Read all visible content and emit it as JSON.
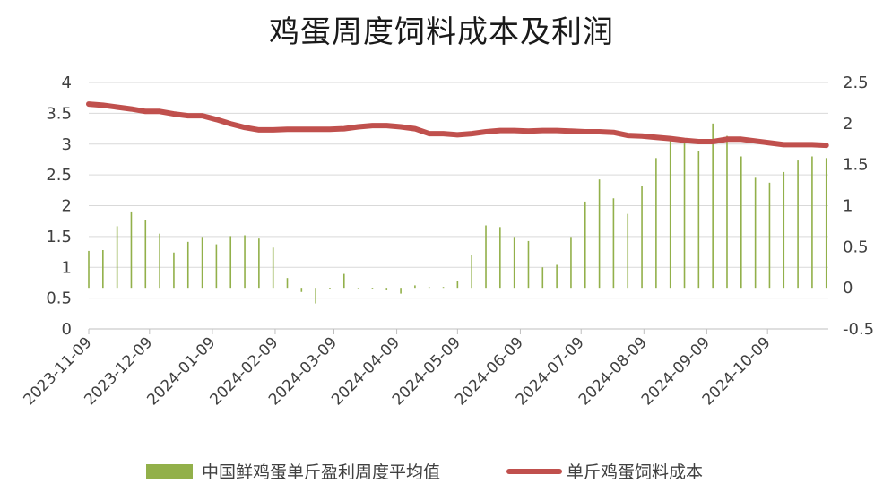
{
  "chart_data": {
    "type": "bar+line",
    "title": "鸡蛋周度饲料成本及利润",
    "x_ticks": [
      "2023-11-09",
      "2023-12-09",
      "2024-01-09",
      "2024-02-09",
      "2024-03-09",
      "2024-04-09",
      "2024-05-09",
      "2024-06-09",
      "2024-07-09",
      "2024-08-09",
      "2024-09-09",
      "2024-10-09"
    ],
    "x_start": "2023-11-09",
    "x_end": "2024-11-08",
    "left_axis": {
      "min": 0,
      "max": 4,
      "ticks": [
        "0",
        "0.5",
        "1",
        "1.5",
        "2",
        "2.5",
        "3",
        "3.5",
        "4"
      ]
    },
    "right_axis": {
      "min": -0.5,
      "max": 2.5,
      "ticks": [
        "-0.5",
        "0",
        "0.5",
        "1",
        "1.5",
        "2",
        "2.5"
      ]
    },
    "series": [
      {
        "name": "中国鲜鸡蛋单斤盈利周度平均值",
        "axis": "right",
        "type": "bar",
        "color": "#92b04a",
        "x": [
          "2023-11-09",
          "2023-11-16",
          "2023-11-23",
          "2023-11-30",
          "2023-12-07",
          "2023-12-14",
          "2023-12-21",
          "2023-12-28",
          "2024-01-04",
          "2024-01-11",
          "2024-01-18",
          "2024-01-25",
          "2024-02-01",
          "2024-02-08",
          "2024-02-15",
          "2024-02-22",
          "2024-02-29",
          "2024-03-07",
          "2024-03-14",
          "2024-03-21",
          "2024-03-28",
          "2024-04-04",
          "2024-04-11",
          "2024-04-18",
          "2024-04-25",
          "2024-05-02",
          "2024-05-09",
          "2024-05-16",
          "2024-05-23",
          "2024-05-30",
          "2024-06-06",
          "2024-06-13",
          "2024-06-20",
          "2024-06-27",
          "2024-07-04",
          "2024-07-11",
          "2024-07-18",
          "2024-07-25",
          "2024-08-01",
          "2024-08-08",
          "2024-08-15",
          "2024-08-22",
          "2024-08-29",
          "2024-09-05",
          "2024-09-12",
          "2024-09-19",
          "2024-09-26",
          "2024-10-03",
          "2024-10-10",
          "2024-10-17",
          "2024-10-24",
          "2024-10-31",
          "2024-11-07"
        ],
        "values": [
          0.45,
          0.46,
          0.75,
          0.93,
          0.82,
          0.66,
          0.43,
          0.56,
          0.62,
          0.53,
          0.63,
          0.64,
          0.6,
          0.49,
          0.12,
          -0.05,
          -0.19,
          -0.01,
          0.17,
          0.0,
          -0.01,
          -0.03,
          -0.07,
          0.03,
          0.01,
          0.01,
          0.08,
          0.4,
          0.76,
          0.74,
          0.62,
          0.57,
          0.25,
          0.28,
          0.62,
          1.05,
          1.32,
          1.09,
          0.9,
          1.24,
          1.58,
          1.8,
          1.78,
          1.66,
          2.0,
          1.85,
          1.6,
          1.34,
          1.28,
          1.41,
          1.55,
          1.6,
          1.58
        ]
      },
      {
        "name": "单斤鸡蛋饲料成本",
        "axis": "left",
        "type": "line",
        "color": "#c0504d",
        "x": [
          "2023-11-09",
          "2023-11-16",
          "2023-11-23",
          "2023-11-30",
          "2023-12-07",
          "2023-12-14",
          "2023-12-21",
          "2023-12-28",
          "2024-01-04",
          "2024-01-11",
          "2024-01-18",
          "2024-01-25",
          "2024-02-01",
          "2024-02-08",
          "2024-02-15",
          "2024-02-22",
          "2024-02-29",
          "2024-03-07",
          "2024-03-14",
          "2024-03-21",
          "2024-03-28",
          "2024-04-04",
          "2024-04-11",
          "2024-04-18",
          "2024-04-25",
          "2024-05-02",
          "2024-05-09",
          "2024-05-16",
          "2024-05-23",
          "2024-05-30",
          "2024-06-06",
          "2024-06-13",
          "2024-06-20",
          "2024-06-27",
          "2024-07-04",
          "2024-07-11",
          "2024-07-18",
          "2024-07-25",
          "2024-08-01",
          "2024-08-08",
          "2024-08-15",
          "2024-08-22",
          "2024-08-29",
          "2024-09-05",
          "2024-09-12",
          "2024-09-19",
          "2024-09-26",
          "2024-10-03",
          "2024-10-10",
          "2024-10-17",
          "2024-10-24",
          "2024-10-31",
          "2024-11-07"
        ],
        "values": [
          3.65,
          3.63,
          3.6,
          3.57,
          3.53,
          3.53,
          3.49,
          3.46,
          3.46,
          3.4,
          3.33,
          3.27,
          3.23,
          3.23,
          3.24,
          3.24,
          3.24,
          3.24,
          3.25,
          3.28,
          3.3,
          3.3,
          3.28,
          3.25,
          3.17,
          3.17,
          3.15,
          3.17,
          3.2,
          3.22,
          3.22,
          3.21,
          3.22,
          3.22,
          3.21,
          3.2,
          3.2,
          3.19,
          3.14,
          3.13,
          3.11,
          3.09,
          3.06,
          3.04,
          3.04,
          3.08,
          3.08,
          3.05,
          3.02,
          2.99,
          2.99,
          2.99,
          2.98
        ]
      }
    ],
    "legend": {
      "position": "bottom"
    },
    "grid": true
  }
}
